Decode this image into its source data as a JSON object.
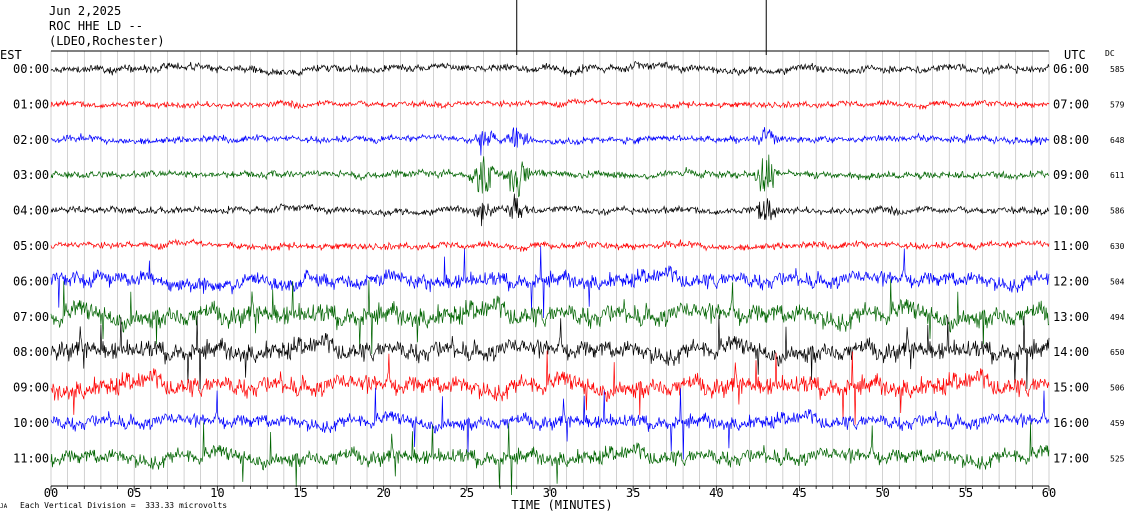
{
  "header": {
    "date": "Jun 2,2025",
    "station": "ROC HHE LD --",
    "network": "(LDEO,Rochester)"
  },
  "left_tz": "EST",
  "right_tz": "UTC",
  "dc_header": "DC",
  "x_axis_title": "TIME (MINUTES)",
  "scale_note": "Each Vertical Division =  333.33 microvolts",
  "corner_mark": "JA",
  "colors": {
    "black": "#000000",
    "red": "#ff0000",
    "blue": "#0000ff",
    "green": "#006400"
  },
  "chart_data": {
    "type": "line",
    "xlim": [
      0,
      60
    ],
    "x_ticks": [
      "00",
      "05",
      "10",
      "15",
      "20",
      "25",
      "30",
      "35",
      "40",
      "45",
      "50",
      "55",
      "60"
    ],
    "grid": "vertical lines every minute",
    "rows": [
      {
        "left": "00:00",
        "right": "06:00",
        "dc": "585",
        "color": "#000000"
      },
      {
        "left": "01:00",
        "right": "07:00",
        "dc": "579",
        "color": "#ff0000"
      },
      {
        "left": "02:00",
        "right": "08:00",
        "dc": "648",
        "color": "#0000ff"
      },
      {
        "left": "03:00",
        "right": "09:00",
        "dc": "611",
        "color": "#006400"
      },
      {
        "left": "04:00",
        "right": "10:00",
        "dc": "586",
        "color": "#000000"
      },
      {
        "left": "05:00",
        "right": "11:00",
        "dc": "630",
        "color": "#ff0000"
      },
      {
        "left": "06:00",
        "right": "12:00",
        "dc": "504",
        "color": "#0000ff"
      },
      {
        "left": "07:00",
        "right": "13:00",
        "dc": "494",
        "color": "#006400"
      },
      {
        "left": "08:00",
        "right": "14:00",
        "dc": "650",
        "color": "#000000"
      },
      {
        "left": "09:00",
        "right": "15:00",
        "dc": "506",
        "color": "#ff0000"
      },
      {
        "left": "10:00",
        "right": "16:00",
        "dc": "459",
        "color": "#0000ff"
      },
      {
        "left": "11:00",
        "right": "17:00",
        "dc": "525",
        "color": "#006400"
      }
    ],
    "events": [
      {
        "row": 3,
        "minute": 26.0,
        "note": "small burst"
      },
      {
        "row": 3,
        "minute": 28.0,
        "note": "spike extending above plot"
      },
      {
        "row": 3,
        "minute": 43.0,
        "note": "spike extending above plot"
      }
    ]
  }
}
